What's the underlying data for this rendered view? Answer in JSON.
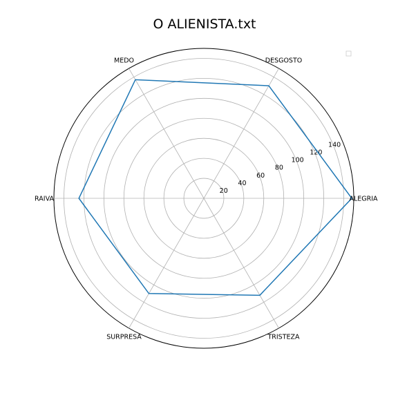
{
  "chart_data": {
    "type": "radar",
    "title": "O ALIENISTA.txt",
    "categories": [
      "ALEGRIA",
      "DESGOSTO",
      "MEDO",
      "RAIVA",
      "SURPRESA",
      "TRISTEZA"
    ],
    "radial_ticks": [
      20,
      40,
      60,
      80,
      100,
      120,
      140
    ],
    "rlim": [
      0,
      150
    ],
    "series": [
      {
        "values": [
          148,
          130,
          137,
          125,
          110,
          112
        ],
        "color": "#1f77b4"
      }
    ],
    "grid": true,
    "legend": "top-right, empty"
  }
}
